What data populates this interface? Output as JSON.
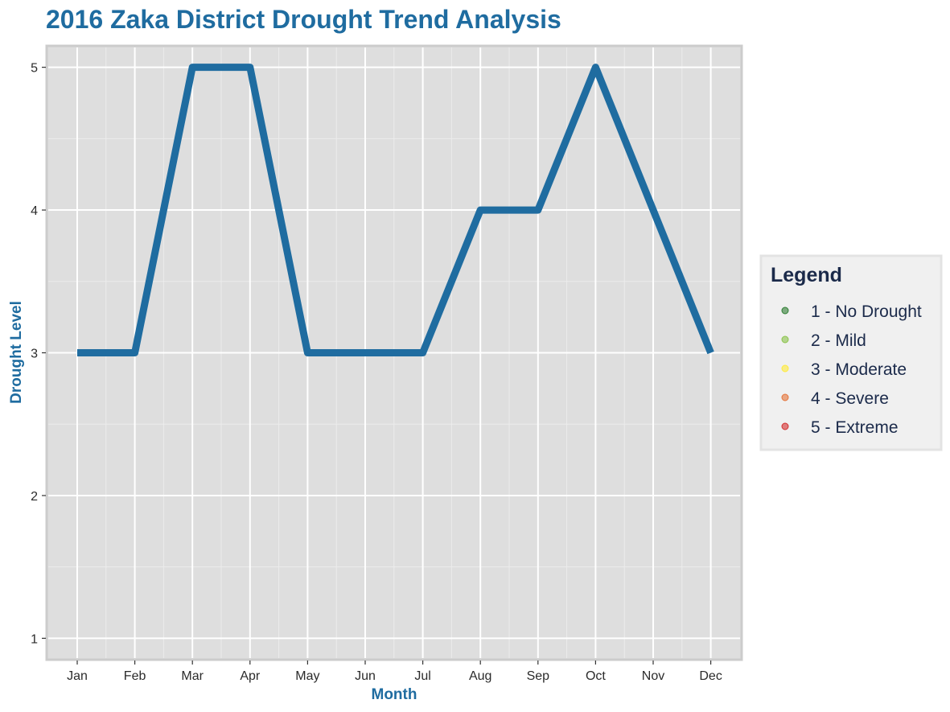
{
  "colors": {
    "line": "#1f6ca0",
    "panel_bg": "#dedede",
    "panel_border": "#cccccc",
    "grid": "#ffffff",
    "legend_bg": "#f0f0f0"
  },
  "chart_data": {
    "type": "line",
    "title": "2016 Zaka District Drought Trend Analysis",
    "xlabel": "Month",
    "ylabel": "Drought Level",
    "categories": [
      "Jan",
      "Feb",
      "Mar",
      "Apr",
      "May",
      "Jun",
      "Jul",
      "Aug",
      "Sep",
      "Oct",
      "Nov",
      "Dec"
    ],
    "series": [
      {
        "name": "Drought Level",
        "values": [
          3,
          3,
          5,
          5,
          3,
          3,
          3,
          4,
          4,
          5,
          4,
          3
        ]
      }
    ],
    "ylim": [
      0.85,
      5.15
    ],
    "yticks": [
      1,
      2,
      3,
      4,
      5
    ],
    "grid": true,
    "legend": {
      "title": "Legend",
      "position": "right",
      "items": [
        {
          "label": "1 - No Drought",
          "color": "#2e7d32"
        },
        {
          "label": "2 - Mild",
          "color": "#8bc34a"
        },
        {
          "label": "3 - Moderate",
          "color": "#ffeb3b"
        },
        {
          "label": "4 - Severe",
          "color": "#e57339"
        },
        {
          "label": "5 - Extreme",
          "color": "#d32f2f"
        }
      ]
    }
  }
}
